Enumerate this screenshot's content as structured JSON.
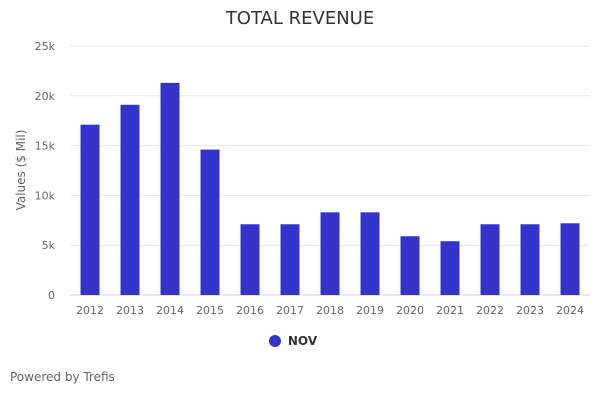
{
  "chart_data": {
    "type": "bar",
    "title": "TOTAL REVENUE",
    "xlabel": "",
    "ylabel": "Values ($ Mil)",
    "categories": [
      "2012",
      "2013",
      "2014",
      "2015",
      "2016",
      "2017",
      "2018",
      "2019",
      "2020",
      "2021",
      "2022",
      "2023",
      "2024"
    ],
    "series": [
      {
        "name": "NOV",
        "color": "#3333cc",
        "values": [
          17100,
          19100,
          21300,
          14600,
          7100,
          7100,
          8300,
          8300,
          5900,
          5400,
          7100,
          7100,
          7200
        ]
      }
    ],
    "ylim": [
      0,
      25000
    ],
    "yticks": [
      0,
      5000,
      10000,
      15000,
      20000,
      25000
    ],
    "ytick_labels": [
      "0",
      "5k",
      "10k",
      "15k",
      "20k",
      "25k"
    ],
    "grid": true,
    "legend_position": "bottom"
  },
  "footer": {
    "credit": "Powered by Trefis"
  }
}
